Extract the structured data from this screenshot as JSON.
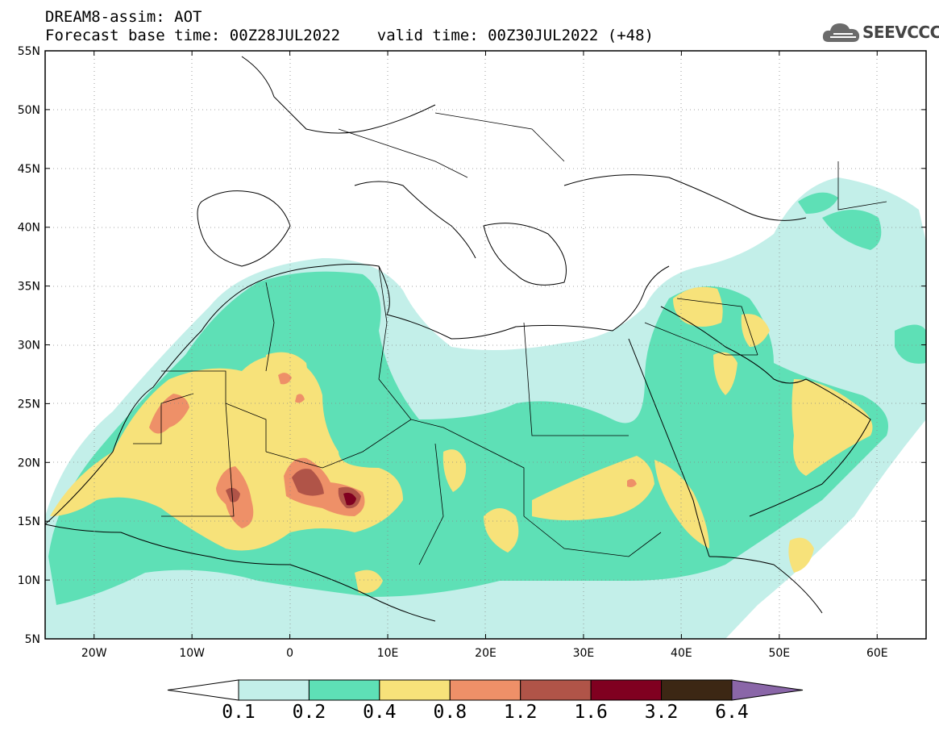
{
  "title": {
    "line1": "DREAM8-assim: AOT",
    "line2": "Forecast base time: 00Z28JUL2022    valid time: 00Z30JUL2022 (+48)"
  },
  "logo": {
    "text": "SEEVCCC",
    "icon": "cloud-icon"
  },
  "map": {
    "lon_range": [
      -25,
      65
    ],
    "lat_range": [
      5,
      55
    ],
    "lat_ticks": [
      {
        "value": 55,
        "label": "55N"
      },
      {
        "value": 50,
        "label": "50N"
      },
      {
        "value": 45,
        "label": "45N"
      },
      {
        "value": 40,
        "label": "40N"
      },
      {
        "value": 35,
        "label": "35N"
      },
      {
        "value": 30,
        "label": "30N"
      },
      {
        "value": 25,
        "label": "25N"
      },
      {
        "value": 20,
        "label": "20N"
      },
      {
        "value": 15,
        "label": "15N"
      },
      {
        "value": 10,
        "label": "10N"
      },
      {
        "value": 5,
        "label": "5N"
      }
    ],
    "lon_ticks": [
      {
        "value": -20,
        "label": "20W"
      },
      {
        "value": -10,
        "label": "10W"
      },
      {
        "value": 0,
        "label": "0"
      },
      {
        "value": 10,
        "label": "10E"
      },
      {
        "value": 20,
        "label": "20E"
      },
      {
        "value": 30,
        "label": "30E"
      },
      {
        "value": 40,
        "label": "40E"
      },
      {
        "value": 50,
        "label": "50E"
      },
      {
        "value": 60,
        "label": "60E"
      }
    ],
    "gridlines": true
  },
  "colorbar": {
    "labels": [
      "0.1",
      "0.2",
      "0.4",
      "0.8",
      "1.2",
      "1.6",
      "3.2",
      "6.4"
    ],
    "colors": [
      "#ffffff",
      "#c3efe9",
      "#5ee0b6",
      "#f7e27a",
      "#ee9068",
      "#b05448",
      "#800020",
      "#3c2714",
      "#8a66a8"
    ]
  }
}
